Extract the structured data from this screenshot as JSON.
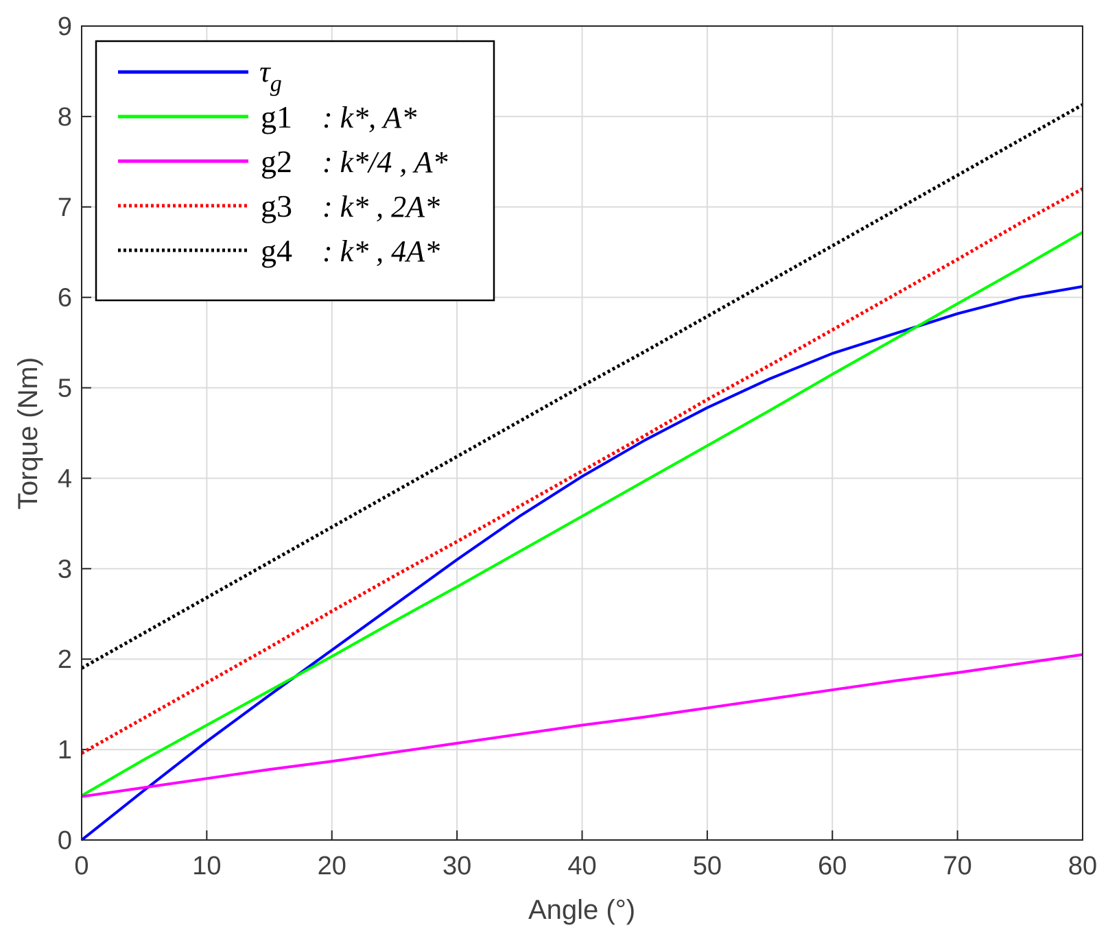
{
  "chart_data": {
    "type": "line",
    "xlabel": "Angle (°)",
    "ylabel": "Torque (Nm)",
    "xlim": [
      0,
      80
    ],
    "ylim": [
      0,
      9
    ],
    "xticks": [
      "0",
      "10",
      "20",
      "30",
      "40",
      "50",
      "60",
      "70",
      "80"
    ],
    "yticks": [
      "0",
      "1",
      "2",
      "3",
      "4",
      "5",
      "6",
      "7",
      "8",
      "9"
    ],
    "grid": true,
    "legend_position": "top-left",
    "x": [
      0,
      5,
      10,
      15,
      20,
      25,
      30,
      35,
      40,
      45,
      50,
      55,
      60,
      65,
      70,
      75,
      80
    ],
    "series": [
      {
        "name": "τ",
        "name_sub": "g",
        "color": "#0000ff",
        "style": "solid",
        "values": [
          0.0,
          0.55,
          1.09,
          1.6,
          2.1,
          2.6,
          3.1,
          3.58,
          4.02,
          4.42,
          4.78,
          5.1,
          5.38,
          5.6,
          5.82,
          6.0,
          6.12
        ]
      },
      {
        "name": "g1",
        "desc": ": k*, A*",
        "color": "#00ff00",
        "style": "solid",
        "values": [
          0.49,
          0.89,
          1.27,
          1.65,
          2.03,
          2.42,
          2.8,
          3.19,
          3.58,
          3.97,
          4.36,
          4.75,
          5.15,
          5.54,
          5.93,
          6.32,
          6.72
        ]
      },
      {
        "name": "g2",
        "desc": ": k*/4 , A*",
        "color": "#ff00ff",
        "style": "solid",
        "values": [
          0.48,
          0.58,
          0.68,
          0.78,
          0.87,
          0.97,
          1.07,
          1.17,
          1.27,
          1.36,
          1.46,
          1.56,
          1.66,
          1.76,
          1.85,
          1.95,
          2.05
        ]
      },
      {
        "name": "g3",
        "desc": ": k* , 2A*",
        "color": "#ff0000",
        "style": "dotted",
        "values": [
          0.96,
          1.35,
          1.74,
          2.13,
          2.53,
          2.92,
          3.3,
          3.69,
          4.08,
          4.47,
          4.87,
          5.25,
          5.64,
          6.03,
          6.42,
          6.82,
          7.2
        ]
      },
      {
        "name": "g4",
        "desc": ": k* , 4A*",
        "color": "#000000",
        "style": "dotted",
        "values": [
          1.9,
          2.29,
          2.68,
          3.07,
          3.46,
          3.85,
          4.24,
          4.63,
          5.02,
          5.4,
          5.79,
          6.18,
          6.57,
          6.96,
          7.35,
          7.74,
          8.13
        ]
      }
    ]
  }
}
